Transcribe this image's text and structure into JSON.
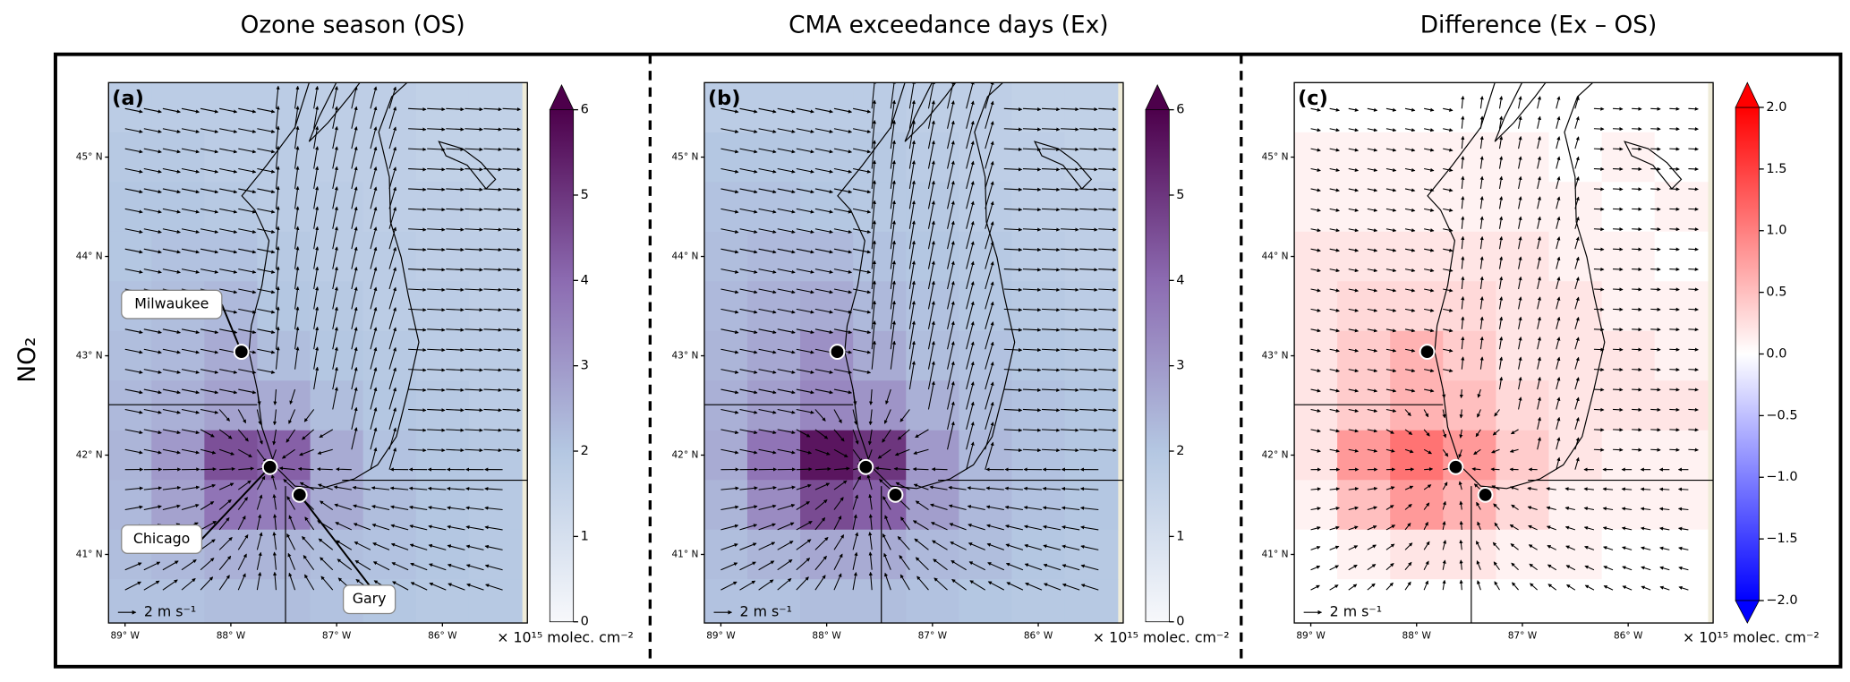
{
  "row_label": "NO₂",
  "chart_data": [
    {
      "type": "map",
      "title": "Ozone season (OS)",
      "panel_label": "(a)",
      "xlim": [
        -89.156,
        -85.197
      ],
      "ylim": [
        40.31,
        45.75
      ],
      "xticks": [
        {
          "value": -89,
          "label": "89° W"
        },
        {
          "value": -88,
          "label": "88° W"
        },
        {
          "value": -87,
          "label": "87° W"
        },
        {
          "value": -86,
          "label": "86° W"
        }
      ],
      "yticks": [
        {
          "value": 41,
          "label": "41° N"
        },
        {
          "value": 42,
          "label": "42° N"
        },
        {
          "value": 43,
          "label": "43° N"
        },
        {
          "value": 44,
          "label": "44° N"
        },
        {
          "value": 45,
          "label": "45° N"
        }
      ],
      "field": {
        "lon": [
          -89.0,
          -88.5,
          -88.0,
          -87.5,
          -87.0,
          -86.5,
          -86.0,
          -85.5
        ],
        "lat": [
          45.5,
          45.0,
          44.5,
          44.0,
          43.5,
          43.0,
          42.5,
          42.0,
          41.5,
          41.0,
          40.5
        ],
        "z": [
          [
            1.8,
            1.8,
            1.8,
            1.8,
            1.7,
            1.7,
            1.6,
            1.6
          ],
          [
            1.9,
            1.9,
            1.8,
            1.8,
            1.7,
            1.7,
            1.6,
            1.6
          ],
          [
            2.0,
            2.0,
            1.9,
            1.8,
            1.8,
            1.7,
            1.7,
            1.6
          ],
          [
            2.0,
            2.1,
            2.1,
            1.9,
            1.8,
            1.8,
            1.7,
            1.7
          ],
          [
            2.1,
            2.2,
            2.3,
            2.0,
            1.9,
            1.8,
            1.8,
            1.7
          ],
          [
            2.2,
            2.3,
            2.6,
            2.2,
            2.0,
            1.9,
            1.8,
            1.8
          ],
          [
            2.3,
            2.5,
            2.8,
            2.6,
            2.2,
            2.0,
            1.9,
            1.8
          ],
          [
            2.4,
            3.0,
            4.5,
            4.2,
            2.6,
            2.1,
            2.0,
            1.9
          ],
          [
            2.3,
            2.8,
            3.8,
            3.6,
            2.6,
            2.2,
            2.0,
            1.9
          ],
          [
            2.2,
            2.3,
            2.5,
            2.4,
            2.2,
            2.1,
            2.0,
            1.9
          ],
          [
            2.1,
            2.1,
            2.2,
            2.2,
            2.1,
            2.0,
            1.9,
            1.9
          ]
        ]
      },
      "colorbar": {
        "lim": [
          0,
          6
        ],
        "ticks": [
          0,
          1,
          2,
          3,
          4,
          5,
          6
        ],
        "extend": "max",
        "colors": [
          "#f7f8fb",
          "#b4c7e2",
          "#8c6bb1",
          "#4d004b"
        ],
        "unit": "× 10¹⁵ molec. cm⁻²"
      },
      "cities": {
        "lon": [
          -87.9,
          -87.63,
          -87.35
        ],
        "lat": [
          43.04,
          41.88,
          41.6
        ]
      },
      "city_labels": [
        "Milwaukee",
        "Chicago",
        "Gary"
      ],
      "wind_scale_label": "2 m s⁻¹"
    },
    {
      "type": "map",
      "title": "CMA exceedance days (Ex)",
      "panel_label": "(b)",
      "xlim": [
        -89.156,
        -85.197
      ],
      "ylim": [
        40.31,
        45.75
      ],
      "xticks": [
        {
          "value": -89,
          "label": "89° W"
        },
        {
          "value": -88,
          "label": "88° W"
        },
        {
          "value": -87,
          "label": "87° W"
        },
        {
          "value": -86,
          "label": "86° W"
        }
      ],
      "yticks": [
        {
          "value": 41,
          "label": "41° N"
        },
        {
          "value": 42,
          "label": "42° N"
        },
        {
          "value": 43,
          "label": "43° N"
        },
        {
          "value": 44,
          "label": "44° N"
        },
        {
          "value": 45,
          "label": "45° N"
        }
      ],
      "field": {
        "lon": [
          -89.0,
          -88.5,
          -88.0,
          -87.5,
          -87.0,
          -86.5,
          -86.0,
          -85.5
        ],
        "lat": [
          45.5,
          45.0,
          44.5,
          44.0,
          43.5,
          43.0,
          42.5,
          42.0,
          41.5,
          41.0,
          40.5
        ],
        "z": [
          [
            1.8,
            1.8,
            1.8,
            1.8,
            1.7,
            1.7,
            1.6,
            1.6
          ],
          [
            2.0,
            2.0,
            1.9,
            1.9,
            1.8,
            1.7,
            1.7,
            1.6
          ],
          [
            2.1,
            2.1,
            2.0,
            1.9,
            1.9,
            1.8,
            1.7,
            1.7
          ],
          [
            2.2,
            2.3,
            2.3,
            2.1,
            2.0,
            1.9,
            1.8,
            1.7
          ],
          [
            2.3,
            2.5,
            2.6,
            2.3,
            2.1,
            2.0,
            1.9,
            1.8
          ],
          [
            2.4,
            2.7,
            3.2,
            2.6,
            2.2,
            2.1,
            2.0,
            1.9
          ],
          [
            2.5,
            2.9,
            3.4,
            3.1,
            2.5,
            2.2,
            2.1,
            2.0
          ],
          [
            2.6,
            3.8,
            5.6,
            5.0,
            3.0,
            2.3,
            2.1,
            2.0
          ],
          [
            2.4,
            3.3,
            4.6,
            4.2,
            2.9,
            2.3,
            2.1,
            2.0
          ],
          [
            2.2,
            2.4,
            2.7,
            2.6,
            2.3,
            2.2,
            2.0,
            1.9
          ],
          [
            2.1,
            2.1,
            2.2,
            2.2,
            2.1,
            2.0,
            1.9,
            1.9
          ]
        ]
      },
      "colorbar": {
        "lim": [
          0,
          6
        ],
        "ticks": [
          0,
          1,
          2,
          3,
          4,
          5,
          6
        ],
        "extend": "max",
        "colors": [
          "#f7f8fb",
          "#b4c7e2",
          "#8c6bb1",
          "#4d004b"
        ],
        "unit": "× 10¹⁵ molec. cm⁻²"
      },
      "cities": {
        "lon": [
          -87.9,
          -87.63,
          -87.35
        ],
        "lat": [
          43.04,
          41.88,
          41.6
        ]
      },
      "wind_scale_label": "2 m s⁻¹"
    },
    {
      "type": "map",
      "title": "Difference (Ex – OS)",
      "panel_label": "(c)",
      "xlim": [
        -89.156,
        -85.197
      ],
      "ylim": [
        40.31,
        45.75
      ],
      "xticks": [
        {
          "value": -89,
          "label": "89° W"
        },
        {
          "value": -88,
          "label": "88° W"
        },
        {
          "value": -87,
          "label": "87° W"
        },
        {
          "value": -86,
          "label": "86° W"
        }
      ],
      "yticks": [
        {
          "value": 41,
          "label": "41° N"
        },
        {
          "value": 42,
          "label": "42° N"
        },
        {
          "value": 43,
          "label": "43° N"
        },
        {
          "value": 44,
          "label": "44° N"
        },
        {
          "value": 45,
          "label": "45° N"
        }
      ],
      "field": {
        "lon": [
          -89.0,
          -88.5,
          -88.0,
          -87.5,
          -87.0,
          -86.5,
          -86.0,
          -85.5
        ],
        "lat": [
          45.5,
          45.0,
          44.5,
          44.0,
          43.5,
          43.0,
          42.5,
          42.0,
          41.5,
          41.0,
          40.5
        ],
        "z": [
          [
            0.0,
            0.0,
            0.0,
            0.0,
            0.0,
            0.0,
            0.0,
            0.0
          ],
          [
            0.1,
            0.1,
            0.1,
            0.1,
            0.1,
            0.0,
            0.1,
            0.0
          ],
          [
            0.1,
            0.1,
            0.1,
            0.1,
            0.1,
            0.1,
            0.0,
            0.1
          ],
          [
            0.2,
            0.2,
            0.2,
            0.2,
            0.2,
            0.1,
            0.1,
            0.0
          ],
          [
            0.2,
            0.3,
            0.3,
            0.3,
            0.2,
            0.2,
            0.1,
            0.1
          ],
          [
            0.2,
            0.4,
            0.6,
            0.4,
            0.2,
            0.2,
            0.2,
            0.1
          ],
          [
            0.2,
            0.4,
            0.6,
            0.5,
            0.3,
            0.2,
            0.2,
            0.2
          ],
          [
            0.2,
            0.8,
            1.1,
            0.8,
            0.4,
            0.2,
            0.1,
            0.1
          ],
          [
            0.1,
            0.5,
            0.8,
            0.6,
            0.3,
            0.1,
            0.1,
            0.1
          ],
          [
            0.0,
            0.1,
            0.2,
            0.2,
            0.1,
            0.1,
            0.0,
            0.0
          ],
          [
            0.0,
            0.0,
            0.0,
            0.0,
            0.0,
            0.0,
            0.0,
            0.0
          ]
        ]
      },
      "colorbar": {
        "lim": [
          -2,
          2
        ],
        "ticks": [
          {
            "value": -2,
            "label": "−2.0"
          },
          {
            "value": -1.5,
            "label": "−1.5"
          },
          {
            "value": -1,
            "label": "−1.0"
          },
          {
            "value": -0.5,
            "label": "−0.5"
          },
          {
            "value": 0,
            "label": "0.0"
          },
          {
            "value": 0.5,
            "label": "0.5"
          },
          {
            "value": 1,
            "label": "1.0"
          },
          {
            "value": 1.5,
            "label": "1.5"
          },
          {
            "value": 2,
            "label": "2.0"
          }
        ],
        "extend": "both",
        "colors": [
          "#0000ff",
          "#ffffff",
          "#ff0000"
        ],
        "unit": "× 10¹⁵ molec. cm⁻²"
      },
      "cities": {
        "lon": [
          -87.9,
          -87.63,
          -87.35
        ],
        "lat": [
          43.04,
          41.88,
          41.6
        ]
      },
      "wind_scale_label": "2 m s⁻¹"
    }
  ]
}
